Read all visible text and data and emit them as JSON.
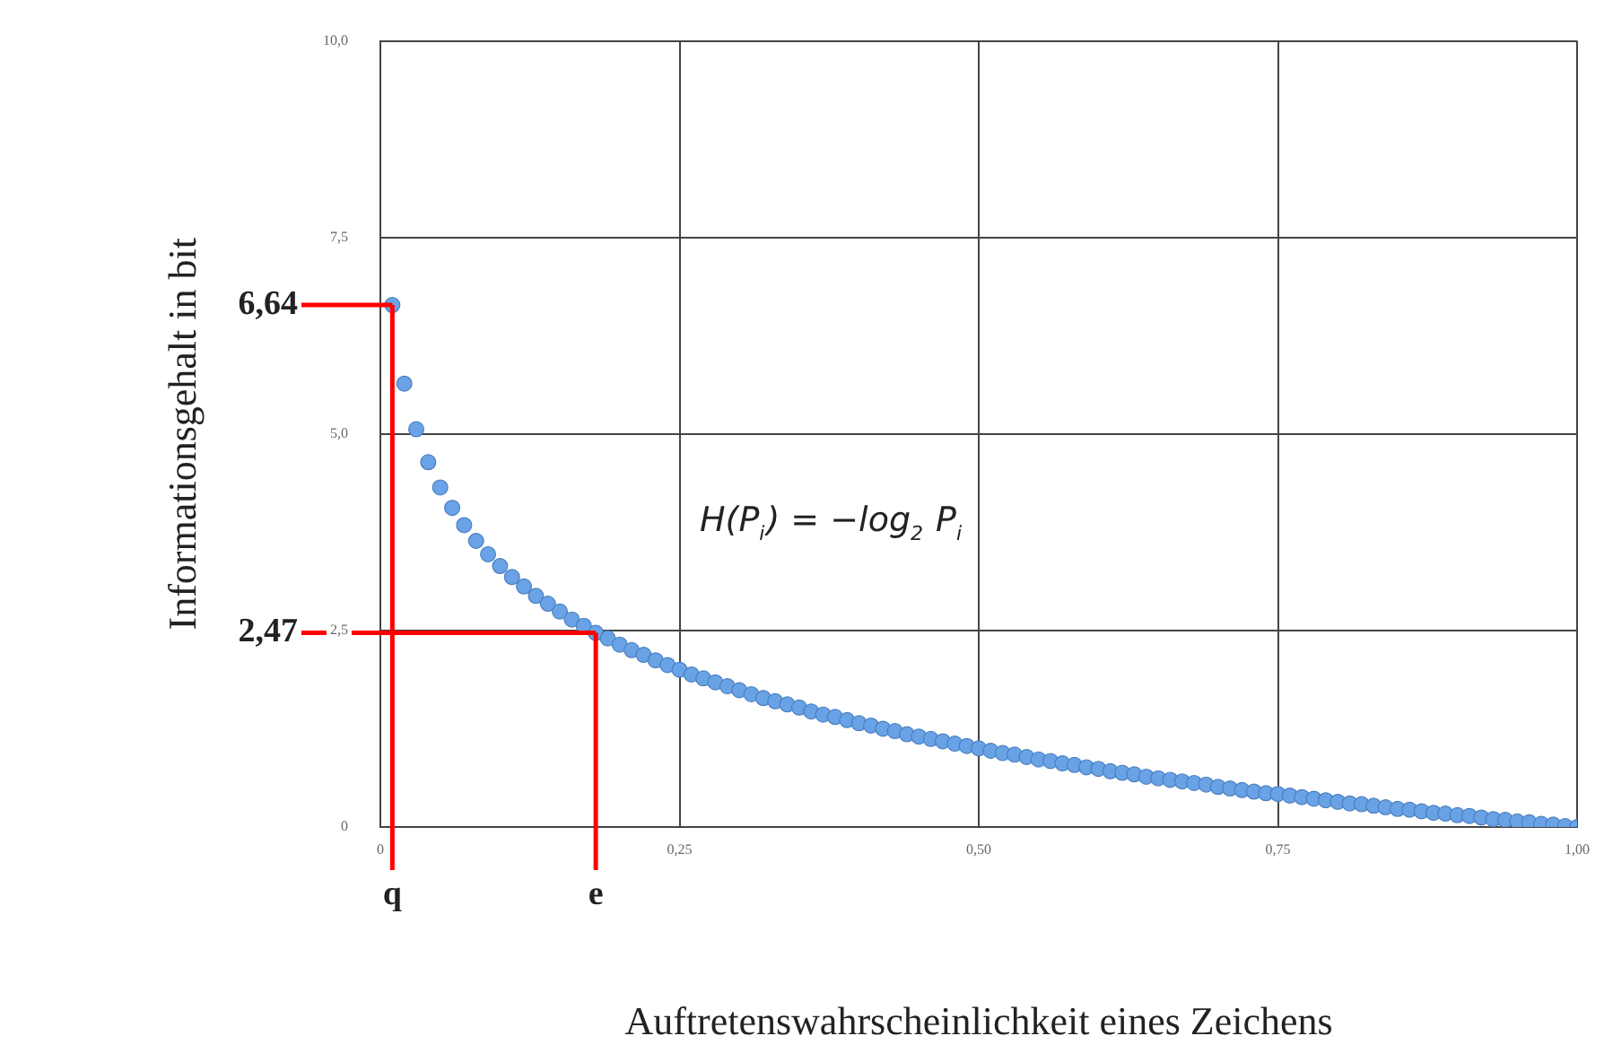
{
  "chart_data": {
    "type": "scatter",
    "xlabel": "Auftretenswahrscheinlichkeit eines Zeichens",
    "ylabel": "Informationsgehalt in bit",
    "x": [
      0.01,
      0.02,
      0.03,
      0.04,
      0.05,
      0.06,
      0.07,
      0.08,
      0.09,
      0.1,
      0.11,
      0.12,
      0.13,
      0.14,
      0.15,
      0.16,
      0.17,
      0.18,
      0.19,
      0.2,
      0.21,
      0.22,
      0.23,
      0.24,
      0.25,
      0.26,
      0.27,
      0.28,
      0.29,
      0.3,
      0.31,
      0.32,
      0.33,
      0.34,
      0.35,
      0.36,
      0.37,
      0.38,
      0.39,
      0.4,
      0.41,
      0.42,
      0.43,
      0.44,
      0.45,
      0.46,
      0.47,
      0.48,
      0.49,
      0.5,
      0.51,
      0.52,
      0.53,
      0.54,
      0.55,
      0.56,
      0.57,
      0.58,
      0.59,
      0.6,
      0.61,
      0.62,
      0.63,
      0.64,
      0.65,
      0.66,
      0.67,
      0.68,
      0.69,
      0.7,
      0.71,
      0.72,
      0.73,
      0.74,
      0.75,
      0.76,
      0.77,
      0.78,
      0.79,
      0.8,
      0.81,
      0.82,
      0.83,
      0.84,
      0.85,
      0.86,
      0.87,
      0.88,
      0.89,
      0.9,
      0.91,
      0.92,
      0.93,
      0.94,
      0.95,
      0.96,
      0.97,
      0.98,
      0.99,
      1.0
    ],
    "series": [
      {
        "color": "#6aa2e6",
        "values": [
          6.64,
          5.64,
          5.06,
          4.64,
          4.32,
          4.06,
          3.84,
          3.64,
          3.47,
          3.32,
          3.18,
          3.06,
          2.94,
          2.84,
          2.74,
          2.64,
          2.56,
          2.47,
          2.4,
          2.32,
          2.25,
          2.19,
          2.12,
          2.06,
          2.0,
          1.94,
          1.89,
          1.84,
          1.79,
          1.74,
          1.69,
          1.64,
          1.6,
          1.56,
          1.52,
          1.47,
          1.43,
          1.4,
          1.36,
          1.32,
          1.29,
          1.25,
          1.22,
          1.18,
          1.15,
          1.12,
          1.09,
          1.06,
          1.03,
          1.0,
          0.97,
          0.94,
          0.92,
          0.89,
          0.86,
          0.84,
          0.81,
          0.79,
          0.76,
          0.74,
          0.71,
          0.69,
          0.67,
          0.64,
          0.62,
          0.6,
          0.58,
          0.56,
          0.54,
          0.51,
          0.49,
          0.47,
          0.45,
          0.43,
          0.42,
          0.4,
          0.38,
          0.36,
          0.34,
          0.32,
          0.3,
          0.29,
          0.27,
          0.25,
          0.23,
          0.22,
          0.2,
          0.18,
          0.17,
          0.15,
          0.14,
          0.12,
          0.1,
          0.09,
          0.07,
          0.06,
          0.04,
          0.03,
          0.01,
          0.0
        ]
      }
    ],
    "xlim": [
      0,
      1
    ],
    "xticks": [
      0,
      {
        "value": 0.25,
        "label": "0,25"
      },
      {
        "value": 0.5,
        "label": "0,50"
      },
      {
        "value": 0.75,
        "label": "0,75"
      },
      {
        "value": 1,
        "label": "1,00"
      }
    ],
    "ylim": [
      0,
      10
    ],
    "yticks": [
      0,
      {
        "value": 2.5,
        "label": "2,5"
      },
      {
        "value": 5,
        "label": "5,0"
      },
      {
        "value": 7.5,
        "label": "7,5"
      },
      {
        "value": 10,
        "label": "10,0"
      }
    ],
    "ref_lines": [
      {
        "axis": "y",
        "value": 6.64,
        "label": "6,64",
        "color": "#ff0000"
      },
      {
        "axis": "y",
        "value": 2.47,
        "label": "2,47",
        "color": "#ff0000"
      },
      {
        "axis": "x",
        "value": 0.01,
        "label": "q",
        "color": "#ff0000"
      },
      {
        "axis": "x",
        "value": 0.18,
        "label": "e",
        "color": "#ff0000"
      }
    ],
    "annotations": [
      "H(P$_{i}$) = −log$_{2}$ P$_{i}$"
    ],
    "grid": true,
    "legend": false,
    "marker": "circle"
  }
}
